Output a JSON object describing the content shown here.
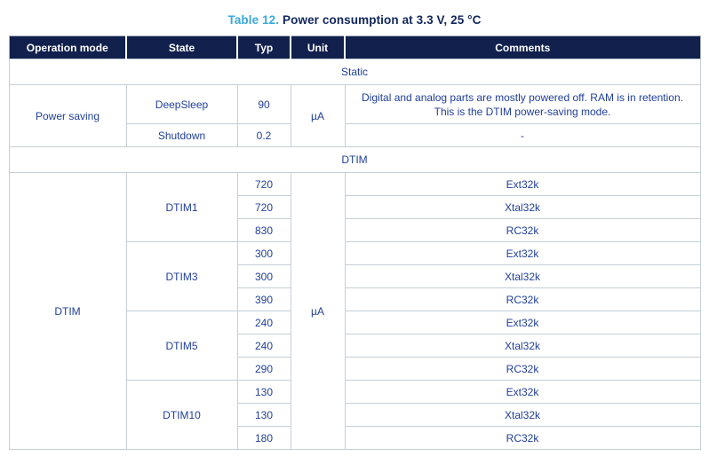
{
  "title": {
    "label": "Table 12.",
    "text": "Power consumption at 3.3 V, 25 °C"
  },
  "colors": {
    "header_bg": "#11204d",
    "accent_cyan": "#39a9dc",
    "body_text": "#21409a",
    "title_text": "#10265c",
    "border": "#c6cfd6"
  },
  "table": {
    "headers": [
      "Operation mode",
      "State",
      "Typ",
      "Unit",
      "Comments"
    ],
    "bands": {
      "static": "Static",
      "dtim": "DTIM"
    },
    "power_saving": {
      "operation_mode": "Power saving",
      "unit": "µA",
      "rows": [
        {
          "state": "DeepSleep",
          "typ": "90",
          "comment": "Digital and analog parts are mostly powered off. RAM is in retention. This is the DTIM power-saving mode."
        },
        {
          "state": "Shutdown",
          "typ": "0.2",
          "comment": "-"
        }
      ]
    },
    "dtim": {
      "operation_mode": "DTIM",
      "unit": "µA",
      "groups": [
        {
          "state": "DTIM1",
          "rows": [
            {
              "typ": "720",
              "comment": "Ext32k"
            },
            {
              "typ": "720",
              "comment": "Xtal32k"
            },
            {
              "typ": "830",
              "comment": "RC32k"
            }
          ]
        },
        {
          "state": "DTIM3",
          "rows": [
            {
              "typ": "300",
              "comment": "Ext32k"
            },
            {
              "typ": "300",
              "comment": "Xtal32k"
            },
            {
              "typ": "390",
              "comment": "RC32k"
            }
          ]
        },
        {
          "state": "DTIM5",
          "rows": [
            {
              "typ": "240",
              "comment": "Ext32k"
            },
            {
              "typ": "240",
              "comment": "Xtal32k"
            },
            {
              "typ": "290",
              "comment": "RC32k"
            }
          ]
        },
        {
          "state": "DTIM10",
          "rows": [
            {
              "typ": "130",
              "comment": "Ext32k"
            },
            {
              "typ": "130",
              "comment": "Xtal32k"
            },
            {
              "typ": "180",
              "comment": "RC32k"
            }
          ]
        }
      ]
    }
  }
}
